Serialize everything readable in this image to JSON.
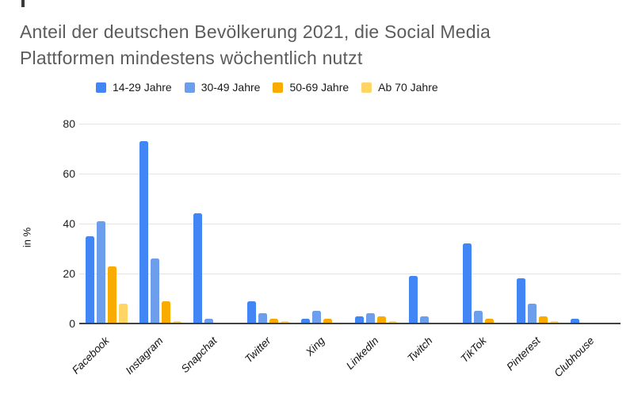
{
  "title": "Anteil der deutschen Bevölkerung 2021, die Social Media Plattformen mindestens wöchentlich nutzt",
  "chart_data": {
    "type": "bar",
    "title": "Anteil der deutschen Bevölkerung 2021, die Social Media Plattformen mindestens wöchentlich nutzt",
    "categories": [
      "Facebook",
      "Instagram",
      "Snapchat",
      "Twitter",
      "Xing",
      "LinkedIn",
      "Twitch",
      "TikTok",
      "Pinterest",
      "Clubhouse"
    ],
    "series": [
      {
        "name": "14-29 Jahre",
        "color": "#4285F4",
        "values": [
          35,
          73,
          44,
          9,
          2,
          3,
          19,
          32,
          18,
          2
        ]
      },
      {
        "name": "30-49 Jahre",
        "color": "#6D9EEB",
        "values": [
          41,
          26,
          2,
          4,
          5,
          4,
          3,
          5,
          8,
          0
        ]
      },
      {
        "name": "50-69 Jahre",
        "color": "#F9AB00",
        "values": [
          23,
          9,
          0,
          2,
          2,
          3,
          0,
          2,
          3,
          0
        ]
      },
      {
        "name": "Ab 70 Jahre",
        "color": "#FFD666",
        "values": [
          8,
          1,
          0,
          1,
          0,
          1,
          0,
          0,
          1,
          0
        ]
      }
    ],
    "xlabel": "",
    "ylabel": "in %",
    "yticks": [
      0,
      20,
      40,
      60,
      80
    ],
    "ylim": [
      0,
      80
    ],
    "grid": true,
    "legend_position": "top",
    "background": "#ffffff",
    "axis_color": "#424242",
    "gridline_color": "#e4e4e4"
  }
}
